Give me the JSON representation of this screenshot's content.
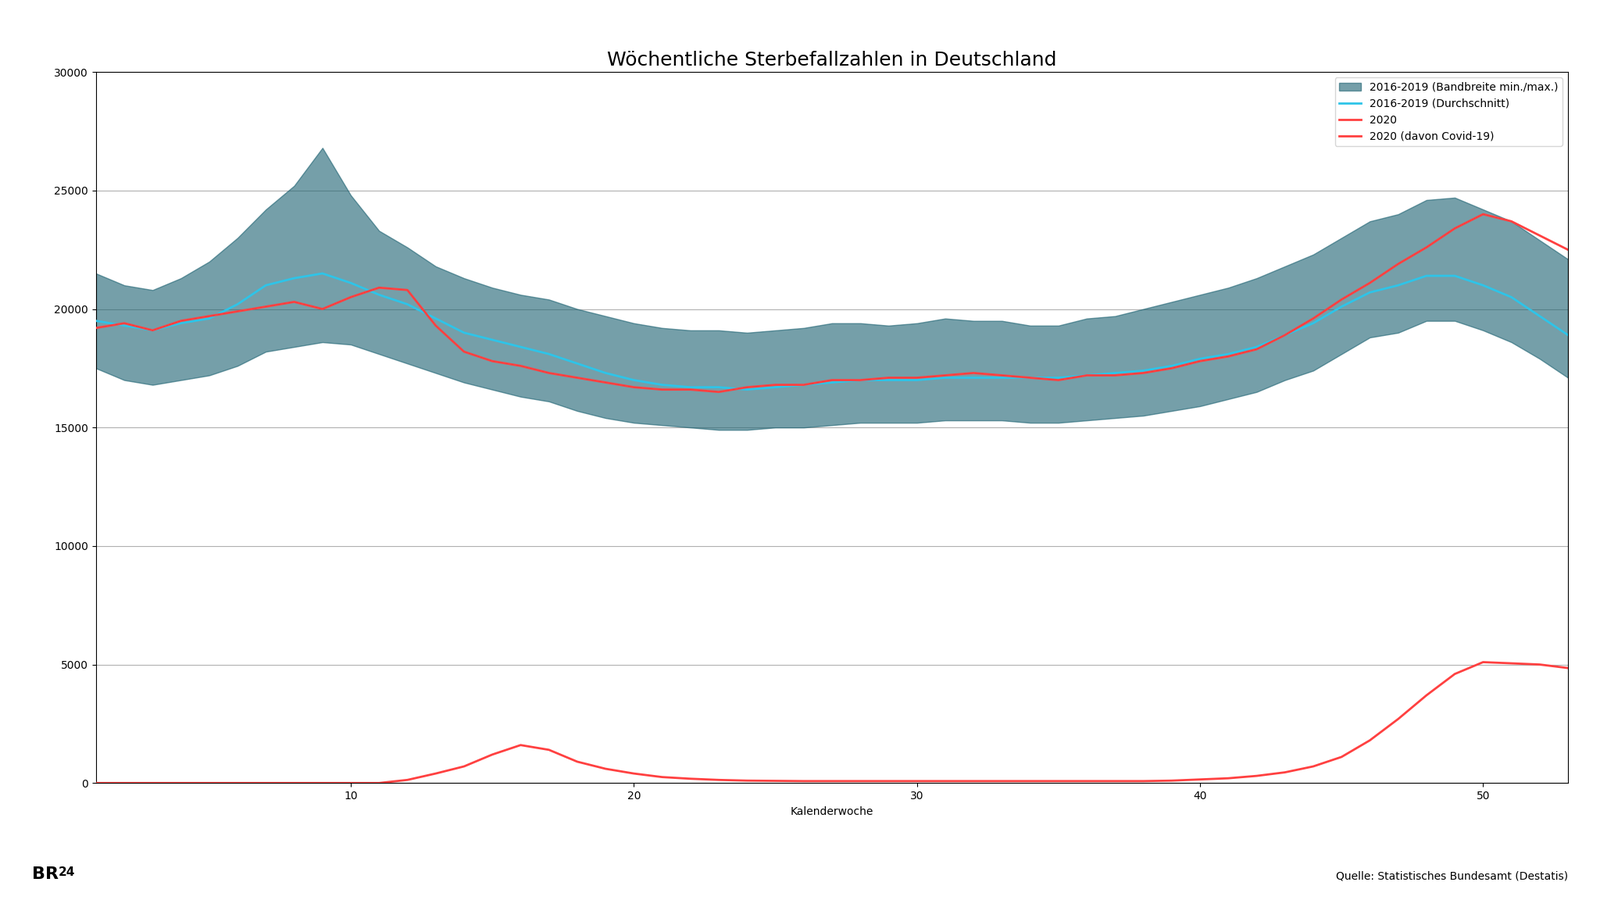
{
  "chart_data": {
    "type": "line",
    "title": "Wöchentliche Sterbefallzahlen in Deutschland",
    "x_label": "Kalenderwoche",
    "x": [
      1,
      2,
      3,
      4,
      5,
      6,
      7,
      8,
      9,
      10,
      11,
      12,
      13,
      14,
      15,
      16,
      17,
      18,
      19,
      20,
      21,
      22,
      23,
      24,
      25,
      26,
      27,
      28,
      29,
      30,
      31,
      32,
      33,
      34,
      35,
      36,
      37,
      38,
      39,
      40,
      41,
      42,
      43,
      44,
      45,
      46,
      47,
      48,
      49,
      50,
      51,
      52,
      53
    ],
    "series": [
      {
        "name": "2016-2019 (Bandbreite min./max.)",
        "type": "band",
        "color": "#1a6070",
        "low": [
          17500,
          17000,
          16800,
          17000,
          17200,
          17600,
          18200,
          18400,
          18600,
          18500,
          18100,
          17700,
          17300,
          16900,
          16600,
          16300,
          16100,
          15700,
          15400,
          15200,
          15100,
          15000,
          14900,
          14900,
          15000,
          15000,
          15100,
          15200,
          15200,
          15200,
          15300,
          15300,
          15300,
          15200,
          15200,
          15300,
          15400,
          15500,
          15700,
          15900,
          16200,
          16500,
          17000,
          17400,
          18100,
          18800,
          19000,
          19500,
          19500,
          19100,
          18600,
          17900,
          17100
        ],
        "high": [
          21500,
          21000,
          20800,
          21300,
          22000,
          23000,
          24200,
          25200,
          26800,
          24800,
          23300,
          22600,
          21800,
          21300,
          20900,
          20600,
          20400,
          20000,
          19700,
          19400,
          19200,
          19100,
          19100,
          19000,
          19100,
          19200,
          19400,
          19400,
          19300,
          19400,
          19600,
          19500,
          19500,
          19300,
          19300,
          19600,
          19700,
          20000,
          20300,
          20600,
          20900,
          21300,
          21800,
          22300,
          23000,
          23700,
          24000,
          24600,
          24700,
          24200,
          23700,
          22900,
          22100
        ]
      },
      {
        "name": "2016-2019 (Durchschnitt)",
        "color": "#2ec4e8",
        "values": [
          19500,
          19300,
          19100,
          19400,
          19600,
          20200,
          21000,
          21300,
          21500,
          21100,
          20600,
          20200,
          19600,
          19000,
          18700,
          18400,
          18100,
          17700,
          17300,
          17000,
          16800,
          16700,
          16700,
          16600,
          16700,
          16800,
          16900,
          17000,
          17000,
          17000,
          17100,
          17100,
          17100,
          17100,
          17100,
          17200,
          17300,
          17400,
          17600,
          17900,
          18100,
          18400,
          18900,
          19400,
          20100,
          20700,
          21000,
          21400,
          21400,
          21000,
          20500,
          19700,
          18900
        ]
      },
      {
        "name": "2020",
        "color": "#ff4040",
        "values": [
          19200,
          19400,
          19100,
          19500,
          19700,
          19900,
          20100,
          20300,
          20000,
          20500,
          20900,
          20800,
          19300,
          18200,
          17800,
          17600,
          17300,
          17100,
          16900,
          16700,
          16600,
          16600,
          16500,
          16700,
          16800,
          16800,
          17000,
          17000,
          17100,
          17100,
          17200,
          17300,
          17200,
          17100,
          17000,
          17200,
          17200,
          17300,
          17500,
          17800,
          18000,
          18300,
          18900,
          19600,
          20400,
          21100,
          21900,
          22600,
          23400,
          24000,
          23700,
          23100,
          22500
        ]
      },
      {
        "name": "2020 (davon Covid-19)",
        "color": "#ff4040",
        "values": [
          0,
          0,
          0,
          0,
          0,
          0,
          0,
          0,
          0,
          0,
          0,
          130,
          400,
          700,
          1200,
          1600,
          1400,
          900,
          600,
          400,
          250,
          180,
          130,
          100,
          90,
          80,
          80,
          80,
          80,
          80,
          80,
          80,
          80,
          80,
          80,
          80,
          80,
          80,
          100,
          150,
          200,
          300,
          450,
          700,
          1100,
          1800,
          2700,
          3700,
          4600,
          5100,
          5050,
          5000,
          4850
        ]
      }
    ],
    "xlim": [
      1,
      53
    ],
    "xticks": [
      10,
      20,
      30,
      40,
      50
    ],
    "ylim": [
      0,
      30000
    ],
    "yticks": [
      0,
      5000,
      10000,
      15000,
      20000,
      25000,
      30000
    ],
    "grid": true,
    "legend": "upper right",
    "annotations": [
      "Quelle: Statistisches Bundesamt (Destatis)",
      "BR",
      "24"
    ]
  }
}
